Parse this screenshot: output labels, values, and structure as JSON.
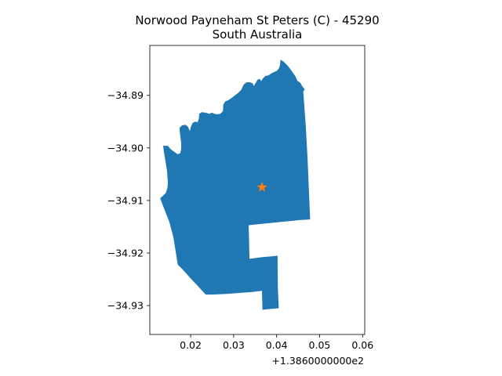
{
  "title": {
    "line1": "Norwood Payneham St Peters (C) - 45290",
    "line2": "South Australia"
  },
  "map": {
    "xlim": [
      0.0105,
      0.0605
    ],
    "ylim": [
      -34.9355,
      -34.8805
    ],
    "x_ticks": [
      0.02,
      0.03,
      0.04,
      0.05,
      0.06
    ],
    "x_tick_labels": [
      "0.02",
      "0.03",
      "0.04",
      "0.05",
      "0.06"
    ],
    "x_offset_label": "+1.3860000000e2",
    "y_ticks": [
      -34.89,
      -34.9,
      -34.91,
      -34.92,
      -34.93
    ],
    "y_tick_labels": [
      "−34.89",
      "−34.90",
      "−34.91",
      "−34.92",
      "−34.93"
    ],
    "region_color": "#1f77b4",
    "marker_color": "#ff7f0e",
    "marker": {
      "x": 0.0366,
      "y": -34.9075,
      "symbol": "star"
    },
    "region_outline": [
      [
        0.0129,
        -34.9096
      ],
      [
        0.0142,
        -34.9086
      ],
      [
        0.0146,
        -34.9076
      ],
      [
        0.0147,
        -34.9066
      ],
      [
        0.0146,
        -34.9055
      ],
      [
        0.0145,
        -34.9043
      ],
      [
        0.0143,
        -34.9033
      ],
      [
        0.0141,
        -34.9023
      ],
      [
        0.0138,
        -34.9009
      ],
      [
        0.0136,
        -34.8996
      ],
      [
        0.0147,
        -34.8996
      ],
      [
        0.0154,
        -34.9003
      ],
      [
        0.0163,
        -34.9008
      ],
      [
        0.017,
        -34.9012
      ],
      [
        0.0176,
        -34.901
      ],
      [
        0.0178,
        -34.9001
      ],
      [
        0.0178,
        -34.899
      ],
      [
        0.0176,
        -34.8978
      ],
      [
        0.0174,
        -34.8962
      ],
      [
        0.018,
        -34.8957
      ],
      [
        0.0188,
        -34.8956
      ],
      [
        0.0194,
        -34.896
      ],
      [
        0.0198,
        -34.8968
      ],
      [
        0.02,
        -34.8961
      ],
      [
        0.0204,
        -34.8953
      ],
      [
        0.021,
        -34.895
      ],
      [
        0.0216,
        -34.8951
      ],
      [
        0.0219,
        -34.8945
      ],
      [
        0.022,
        -34.8935
      ],
      [
        0.0226,
        -34.8932
      ],
      [
        0.0235,
        -34.8933
      ],
      [
        0.0243,
        -34.8935
      ],
      [
        0.025,
        -34.8933
      ],
      [
        0.0255,
        -34.8935
      ],
      [
        0.0262,
        -34.8936
      ],
      [
        0.0269,
        -34.8935
      ],
      [
        0.0275,
        -34.893
      ],
      [
        0.0276,
        -34.8918
      ],
      [
        0.028,
        -34.8912
      ],
      [
        0.029,
        -34.8908
      ],
      [
        0.0297,
        -34.8904
      ],
      [
        0.0303,
        -34.89
      ],
      [
        0.0311,
        -34.8895
      ],
      [
        0.0318,
        -34.8889
      ],
      [
        0.0323,
        -34.888
      ],
      [
        0.033,
        -34.8875
      ],
      [
        0.0338,
        -34.8875
      ],
      [
        0.0344,
        -34.8877
      ],
      [
        0.0347,
        -34.8882
      ],
      [
        0.035,
        -34.8878
      ],
      [
        0.0356,
        -34.887
      ],
      [
        0.0361,
        -34.8869
      ],
      [
        0.0364,
        -34.8873
      ],
      [
        0.0368,
        -34.8868
      ],
      [
        0.0374,
        -34.8863
      ],
      [
        0.0381,
        -34.8862
      ],
      [
        0.0388,
        -34.8858
      ],
      [
        0.0396,
        -34.8855
      ],
      [
        0.0401,
        -34.8853
      ],
      [
        0.0406,
        -34.8848
      ],
      [
        0.0408,
        -34.8842
      ],
      [
        0.0409,
        -34.8832
      ],
      [
        0.0418,
        -34.8837
      ],
      [
        0.0425,
        -34.8843
      ],
      [
        0.0432,
        -34.885
      ],
      [
        0.0439,
        -34.8858
      ],
      [
        0.0444,
        -34.8864
      ],
      [
        0.0448,
        -34.8872
      ],
      [
        0.0455,
        -34.8876
      ],
      [
        0.046,
        -34.8883
      ],
      [
        0.0464,
        -34.8887
      ],
      [
        0.0465,
        -34.889
      ],
      [
        0.0462,
        -34.8892
      ],
      [
        0.0468,
        -34.896
      ],
      [
        0.0472,
        -34.902
      ],
      [
        0.0475,
        -34.908
      ],
      [
        0.0478,
        -34.9136
      ],
      [
        0.0457,
        -34.9137
      ],
      [
        0.0433,
        -34.9139
      ],
      [
        0.0409,
        -34.9141
      ],
      [
        0.0384,
        -34.9143
      ],
      [
        0.0359,
        -34.9145
      ],
      [
        0.0335,
        -34.9147
      ],
      [
        0.0336,
        -34.918
      ],
      [
        0.0337,
        -34.9211
      ],
      [
        0.0365,
        -34.9208
      ],
      [
        0.0393,
        -34.9206
      ],
      [
        0.0402,
        -34.9205
      ],
      [
        0.0403,
        -34.927
      ],
      [
        0.0405,
        -34.9305
      ],
      [
        0.0379,
        -34.9307
      ],
      [
        0.0367,
        -34.9308
      ],
      [
        0.0366,
        -34.9272
      ],
      [
        0.0343,
        -34.9274
      ],
      [
        0.0313,
        -34.9276
      ],
      [
        0.0283,
        -34.9278
      ],
      [
        0.0253,
        -34.9279
      ],
      [
        0.0235,
        -34.9279
      ],
      [
        0.0228,
        -34.9273
      ],
      [
        0.0216,
        -34.9262
      ],
      [
        0.0204,
        -34.9252
      ],
      [
        0.0192,
        -34.9241
      ],
      [
        0.018,
        -34.923
      ],
      [
        0.017,
        -34.9222
      ],
      [
        0.016,
        -34.917
      ],
      [
        0.015,
        -34.914
      ],
      [
        0.0138,
        -34.9115
      ],
      [
        0.0129,
        -34.9096
      ]
    ]
  }
}
